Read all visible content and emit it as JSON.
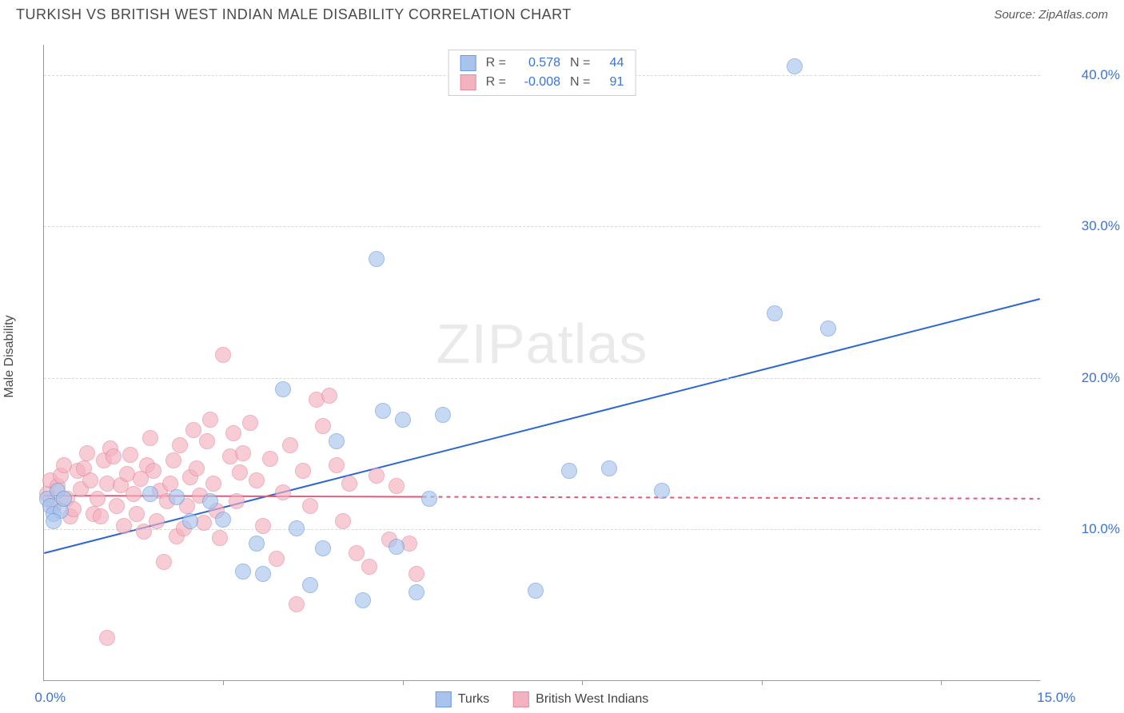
{
  "title": "TURKISH VS BRITISH WEST INDIAN MALE DISABILITY CORRELATION CHART",
  "source": "Source: ZipAtlas.com",
  "ylabel": "Male Disability",
  "watermark": "ZIPatlas",
  "chart": {
    "type": "scatter",
    "background_color": "#ffffff",
    "grid_color": "#d8d8d8",
    "axis_color": "#999999",
    "xlim": [
      0,
      15
    ],
    "ylim": [
      0,
      42
    ],
    "xticks": [
      0,
      15
    ],
    "xtick_labels": [
      "0.0%",
      "15.0%"
    ],
    "xtick_minor": [
      2.7,
      5.4,
      8.1,
      10.8,
      13.5
    ],
    "yticks": [
      10,
      20,
      30,
      40
    ],
    "ytick_labels": [
      "10.0%",
      "20.0%",
      "30.0%",
      "40.0%"
    ],
    "tick_label_color": "#3a74d8",
    "tick_label_fontsize": 17,
    "label_fontsize": 16,
    "label_color": "#4a4a4a",
    "marker_radius": 10,
    "marker_border_width": 1.5,
    "series": [
      {
        "name": "Turks",
        "fill_color": "#a8c4ec",
        "stroke_color": "#6a9bdc",
        "fill_opacity": 0.65,
        "r_value": "0.578",
        "n_value": "44",
        "trend": {
          "x1": 0,
          "y1": 8.4,
          "x2": 15,
          "y2": 25.2,
          "color": "#2b66d3",
          "width": 2,
          "dash_after_x": null
        },
        "points": [
          [
            0.05,
            12
          ],
          [
            0.1,
            11.5
          ],
          [
            0.15,
            11
          ],
          [
            0.2,
            12.5
          ],
          [
            0.25,
            11.2
          ],
          [
            0.15,
            10.5
          ],
          [
            0.3,
            12
          ],
          [
            1.6,
            12.3
          ],
          [
            2.0,
            12.1
          ],
          [
            2.2,
            10.5
          ],
          [
            2.5,
            11.8
          ],
          [
            2.7,
            10.6
          ],
          [
            3.0,
            7.2
          ],
          [
            3.2,
            9.0
          ],
          [
            3.3,
            7.0
          ],
          [
            3.6,
            19.2
          ],
          [
            3.8,
            10.0
          ],
          [
            4.0,
            6.3
          ],
          [
            4.2,
            8.7
          ],
          [
            4.4,
            15.8
          ],
          [
            4.8,
            5.3
          ],
          [
            5.0,
            27.8
          ],
          [
            5.1,
            17.8
          ],
          [
            5.3,
            8.8
          ],
          [
            5.4,
            17.2
          ],
          [
            5.6,
            5.8
          ],
          [
            5.8,
            12.0
          ],
          [
            6.0,
            17.5
          ],
          [
            7.4,
            5.9
          ],
          [
            7.9,
            13.8
          ],
          [
            8.5,
            14.0
          ],
          [
            9.3,
            12.5
          ],
          [
            11.0,
            24.2
          ],
          [
            11.8,
            23.2
          ],
          [
            11.3,
            40.5
          ]
        ]
      },
      {
        "name": "British West Indians",
        "fill_color": "#f3b2c0",
        "stroke_color": "#e88aa0",
        "fill_opacity": 0.65,
        "r_value": "-0.008",
        "n_value": "91",
        "trend": {
          "x1": 0,
          "y1": 12.2,
          "x2": 15,
          "y2": 12.0,
          "color": "#e05a7a",
          "width": 2,
          "dash_after_x": 5.7
        },
        "points": [
          [
            0.05,
            12.3
          ],
          [
            0.1,
            13.2
          ],
          [
            0.15,
            11.5
          ],
          [
            0.2,
            12.8
          ],
          [
            0.25,
            13.5
          ],
          [
            0.3,
            14.2
          ],
          [
            0.35,
            12.0
          ],
          [
            0.4,
            10.8
          ],
          [
            0.45,
            11.3
          ],
          [
            0.5,
            13.8
          ],
          [
            0.55,
            12.6
          ],
          [
            0.6,
            14.0
          ],
          [
            0.65,
            15.0
          ],
          [
            0.7,
            13.2
          ],
          [
            0.75,
            11.0
          ],
          [
            0.8,
            12.0
          ],
          [
            0.85,
            10.8
          ],
          [
            0.9,
            14.5
          ],
          [
            0.95,
            13.0
          ],
          [
            1.0,
            15.3
          ],
          [
            1.05,
            14.8
          ],
          [
            1.1,
            11.5
          ],
          [
            1.15,
            12.9
          ],
          [
            1.2,
            10.2
          ],
          [
            1.25,
            13.6
          ],
          [
            1.3,
            14.9
          ],
          [
            1.35,
            12.3
          ],
          [
            1.4,
            11.0
          ],
          [
            1.45,
            13.3
          ],
          [
            1.5,
            9.8
          ],
          [
            1.55,
            14.2
          ],
          [
            1.6,
            16.0
          ],
          [
            1.65,
            13.8
          ],
          [
            1.7,
            10.5
          ],
          [
            1.75,
            12.5
          ],
          [
            1.8,
            7.8
          ],
          [
            1.85,
            11.8
          ],
          [
            1.9,
            13.0
          ],
          [
            1.95,
            14.5
          ],
          [
            2.0,
            9.5
          ],
          [
            2.05,
            15.5
          ],
          [
            2.1,
            10.0
          ],
          [
            2.15,
            11.5
          ],
          [
            2.2,
            13.4
          ],
          [
            2.25,
            16.5
          ],
          [
            2.3,
            14.0
          ],
          [
            2.35,
            12.2
          ],
          [
            2.4,
            10.4
          ],
          [
            2.45,
            15.8
          ],
          [
            2.5,
            17.2
          ],
          [
            2.55,
            13.0
          ],
          [
            2.6,
            11.2
          ],
          [
            2.65,
            9.4
          ],
          [
            0.95,
            2.8
          ],
          [
            2.7,
            21.5
          ],
          [
            2.8,
            14.8
          ],
          [
            2.85,
            16.3
          ],
          [
            2.9,
            11.8
          ],
          [
            2.95,
            13.7
          ],
          [
            3.0,
            15.0
          ],
          [
            3.1,
            17.0
          ],
          [
            3.2,
            13.2
          ],
          [
            3.3,
            10.2
          ],
          [
            3.4,
            14.6
          ],
          [
            3.5,
            8.0
          ],
          [
            3.6,
            12.4
          ],
          [
            3.7,
            15.5
          ],
          [
            3.8,
            5.0
          ],
          [
            3.9,
            13.8
          ],
          [
            4.0,
            11.5
          ],
          [
            4.1,
            18.5
          ],
          [
            4.2,
            16.8
          ],
          [
            4.3,
            18.8
          ],
          [
            4.4,
            14.2
          ],
          [
            4.5,
            10.5
          ],
          [
            4.6,
            13.0
          ],
          [
            4.7,
            8.4
          ],
          [
            4.9,
            7.5
          ],
          [
            5.0,
            13.5
          ],
          [
            5.2,
            9.3
          ],
          [
            5.3,
            12.8
          ],
          [
            5.5,
            9.0
          ],
          [
            5.6,
            7.0
          ]
        ]
      }
    ]
  },
  "legend_bottom": {
    "items": [
      "Turks",
      "British West Indians"
    ],
    "colors": [
      {
        "fill": "#a8c4ec",
        "stroke": "#6a9bdc"
      },
      {
        "fill": "#f3b2c0",
        "stroke": "#e88aa0"
      }
    ]
  }
}
